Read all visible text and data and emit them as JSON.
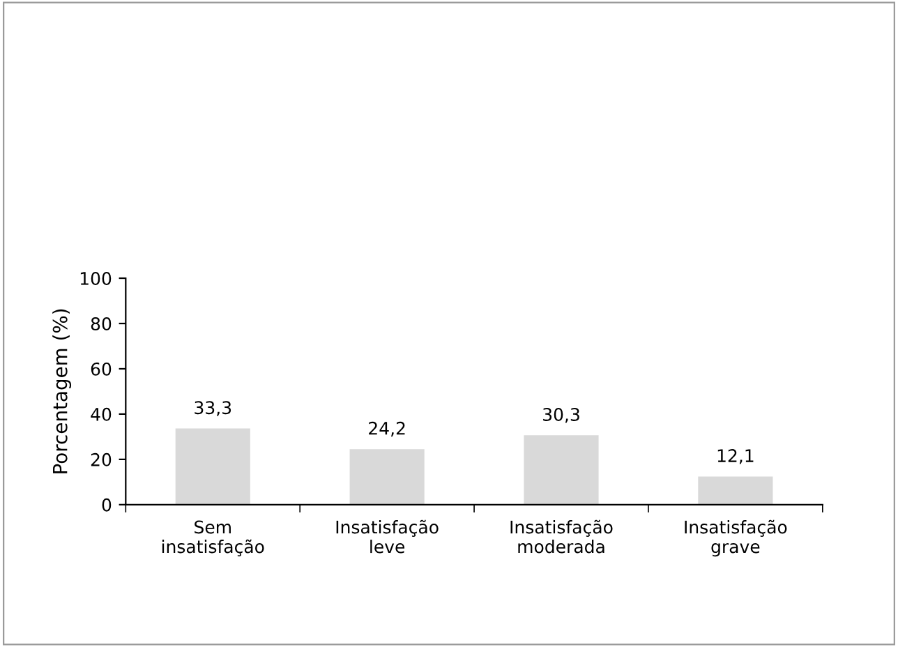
{
  "chart_data": {
    "type": "bar",
    "ylabel": "Porcentagem (%)",
    "categories": [
      "Sem\ninsatisfação",
      "Insatisfação\nleve",
      "Insatisfação\nmoderada",
      "Insatisfação\ngrave"
    ],
    "values": [
      33.3,
      24.2,
      30.3,
      12.1
    ],
    "value_labels": [
      "33,3",
      "24,2",
      "30,3",
      "12,1"
    ],
    "color": "#d9d9d9",
    "ylim": [
      0,
      100
    ],
    "yticks": [
      0,
      20,
      40,
      60,
      80,
      100
    ],
    "grid": false,
    "legend": false
  }
}
